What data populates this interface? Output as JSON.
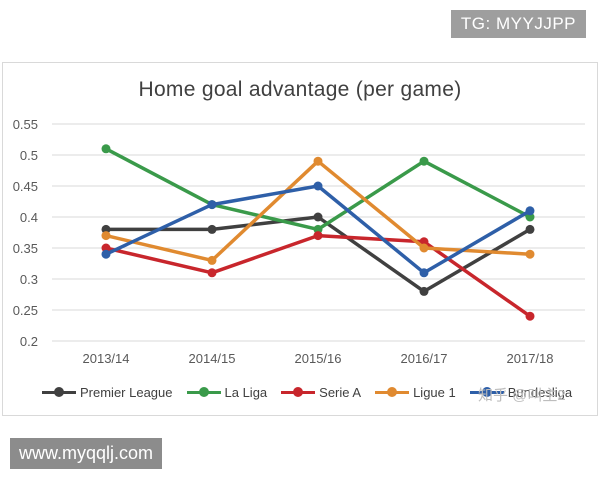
{
  "watermark_top": "TG: MYYJJPP",
  "watermark_bottom": "www.myqqlj.com",
  "watermark_zhihu": "知乎 @叫主2",
  "chart_data": {
    "type": "line",
    "title": "Home goal advantage (per game)",
    "xlabel": "",
    "ylabel": "",
    "categories": [
      "2013/14",
      "2014/15",
      "2015/16",
      "2016/17",
      "2017/18"
    ],
    "ylim": [
      0.2,
      0.55
    ],
    "yticks": [
      "0.2",
      "0.25",
      "0.3",
      "0.35",
      "0.4",
      "0.45",
      "0.5",
      "0.55"
    ],
    "grid": true,
    "legend_position": "bottom",
    "series": [
      {
        "name": "Premier League",
        "color": "#404040",
        "values": [
          0.38,
          0.38,
          0.4,
          0.28,
          0.38
        ]
      },
      {
        "name": "La Liga",
        "color": "#3a9a4a",
        "values": [
          0.51,
          0.42,
          0.38,
          0.49,
          0.4
        ]
      },
      {
        "name": "Serie A",
        "color": "#c8262c",
        "values": [
          0.35,
          0.31,
          0.37,
          0.36,
          0.24
        ]
      },
      {
        "name": "Ligue 1",
        "color": "#e08a30",
        "values": [
          0.37,
          0.33,
          0.49,
          0.35,
          0.34
        ]
      },
      {
        "name": "Bundesliga",
        "color": "#2e5fa8",
        "values": [
          0.34,
          0.42,
          0.45,
          0.31,
          0.41
        ]
      }
    ]
  }
}
